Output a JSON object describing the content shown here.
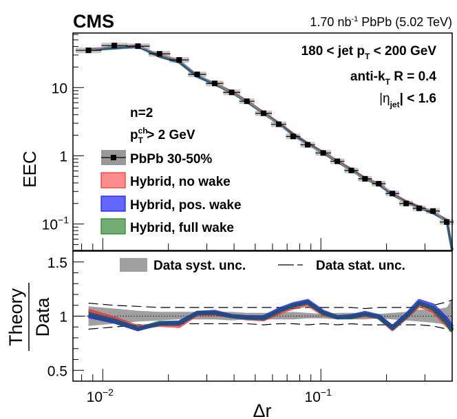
{
  "header": {
    "experiment": "CMS",
    "luminosity_prefix": "1.70 nb",
    "luminosity_sup": "-1",
    "luminosity_suffix": " PbPb (5.02 TeV)"
  },
  "annotations": {
    "line1_a": "180 < jet p",
    "line1_sub": "T",
    "line1_b": " < 200 GeV",
    "line2_a": "anti-k",
    "line2_sub": "T",
    "line2_b": " R = 0.4",
    "line3_a": "|η",
    "line3_sub": "jet",
    "line3_b": "| < 1.6",
    "n_label": "n=2",
    "pt_a": "p",
    "pt_sup": "ch",
    "pt_sub": "T",
    "pt_b": " > 2 GeV"
  },
  "chart_data": [
    {
      "type": "line",
      "panel": "main",
      "ylabel": "EEC",
      "xlabel": "",
      "xscale": "log",
      "yscale": "log",
      "xlim": [
        0.0073,
        0.4
      ],
      "ylim": [
        0.041,
        63
      ],
      "y_ticks": [
        {
          "v": 0.1,
          "label": "10",
          "sup": "−1"
        },
        {
          "v": 1,
          "label": "1",
          "sup": ""
        },
        {
          "v": 10,
          "label": "10",
          "sup": ""
        }
      ],
      "legend": [
        {
          "name": "PbPb 30-50%",
          "kind": "data",
          "color": "#000000",
          "band": "#999999"
        },
        {
          "name": "Hybrid, no wake",
          "kind": "band",
          "fill": "#ff8c8c",
          "edge": "#e8312f"
        },
        {
          "name": "Hybrid, pos. wake",
          "kind": "band",
          "fill": "#6464ff",
          "edge": "#1d1dde"
        },
        {
          "name": "Hybrid, full wake",
          "kind": "band",
          "fill": "#74ad74",
          "edge": "#2a7d2a"
        }
      ],
      "legend_position": "center-left",
      "x": [
        0.0086,
        0.0113,
        0.0145,
        0.0182,
        0.0224,
        0.0271,
        0.0326,
        0.039,
        0.0458,
        0.0546,
        0.0641,
        0.0746,
        0.087,
        0.1025,
        0.119,
        0.138,
        0.1594,
        0.1842,
        0.2129,
        0.2461,
        0.2825,
        0.3266,
        0.3776
      ],
      "series": [
        {
          "name": "PbPb 30-50%",
          "values": [
            35.1,
            41.3,
            40.4,
            31.2,
            25.4,
            15.6,
            11.5,
            8.5,
            6.3,
            4.2,
            2.9,
            1.92,
            1.45,
            1.1,
            0.83,
            0.61,
            0.46,
            0.39,
            0.28,
            0.2,
            0.17,
            0.155,
            0.107
          ]
        },
        {
          "name": "Hybrid (all wake variants, overlapping)",
          "values": [
            35.5,
            37.5,
            40.0,
            28.5,
            23.5,
            14.5,
            11.2,
            8.5,
            6.2,
            4.2,
            2.95,
            2.05,
            1.5,
            1.1,
            0.82,
            0.62,
            0.46,
            0.38,
            0.27,
            0.21,
            0.175,
            0.145,
            0.112
          ]
        }
      ],
      "theory_end": {
        "x": 0.4,
        "y": 0.041
      }
    },
    {
      "type": "line",
      "panel": "ratio",
      "ylabel_num": "Theory",
      "ylabel_den": "Data",
      "xlabel": "Δr",
      "xscale": "log",
      "xlim": [
        0.0073,
        0.4
      ],
      "ylim": [
        0.4,
        1.6
      ],
      "y_ticks": [
        0.5,
        1,
        1.5
      ],
      "y_tick_labels": [
        "0.5",
        "1",
        "1.5"
      ],
      "x_ticks": [
        0.01,
        0.1
      ],
      "x_tick_labels": [
        {
          "base": "10",
          "sup": "−2"
        },
        {
          "base": "10",
          "sup": "−1"
        }
      ],
      "legend": [
        {
          "name": "Data syst. unc.",
          "kind": "band",
          "fill": "#a0a0a0"
        },
        {
          "name": "Data stat. unc.",
          "kind": "dashed",
          "color": "#000000"
        }
      ],
      "x": [
        0.0086,
        0.0113,
        0.0145,
        0.0182,
        0.0224,
        0.0271,
        0.0326,
        0.039,
        0.0458,
        0.0546,
        0.0641,
        0.0746,
        0.087,
        0.1025,
        0.119,
        0.138,
        0.1594,
        0.1842,
        0.2129,
        0.2461,
        0.2825,
        0.3266,
        0.3776,
        0.4
      ],
      "series": [
        {
          "name": "Hybrid, no wake",
          "values": [
            1.05,
            0.98,
            0.9,
            0.92,
            0.91,
            1.02,
            1.02,
            1.0,
            0.98,
            0.97,
            1.03,
            1.08,
            1.11,
            1.02,
            0.99,
            0.99,
            1.01,
            0.99,
            0.88,
            0.99,
            1.1,
            1.05,
            0.92,
            0.87
          ]
        },
        {
          "name": "Hybrid, pos. wake",
          "values": [
            1.0,
            0.95,
            0.88,
            0.93,
            0.94,
            1.03,
            1.04,
            1.0,
            0.99,
            0.99,
            1.06,
            1.11,
            1.14,
            1.04,
            0.99,
            1.0,
            1.03,
            1.0,
            0.9,
            1.01,
            1.14,
            1.1,
            0.97,
            0.9
          ]
        },
        {
          "name": "Hybrid, full wake",
          "values": [
            1.01,
            0.95,
            0.88,
            0.94,
            0.94,
            1.03,
            1.03,
            1.0,
            0.99,
            0.98,
            1.05,
            1.1,
            1.13,
            1.03,
            0.99,
            0.99,
            1.02,
            0.99,
            0.89,
            1.0,
            1.12,
            1.07,
            0.94,
            0.86
          ]
        }
      ],
      "syst_band": {
        "lo": [
          0.91,
          0.93,
          0.95,
          0.96,
          0.97,
          0.97,
          0.97,
          0.96,
          0.97,
          0.97,
          0.97,
          0.97,
          0.98,
          0.98,
          0.97,
          0.97,
          0.97,
          0.98,
          0.97,
          0.96,
          0.95,
          0.94,
          0.92,
          0.9
        ],
        "hi": [
          1.09,
          1.07,
          1.05,
          1.04,
          1.04,
          1.04,
          1.04,
          1.04,
          1.03,
          1.03,
          1.03,
          1.04,
          1.03,
          1.02,
          1.03,
          1.03,
          1.03,
          1.02,
          1.03,
          1.04,
          1.06,
          1.06,
          1.08,
          1.16
        ]
      },
      "stat_band": {
        "lo": [
          0.88,
          0.9,
          0.92,
          0.92,
          0.93,
          0.93,
          0.93,
          0.93,
          0.93,
          0.92,
          0.93,
          0.93,
          0.92,
          0.93,
          0.92,
          0.93,
          0.92,
          0.92,
          0.92,
          0.92,
          0.92,
          0.91,
          0.88,
          0.86
        ],
        "hi": [
          1.12,
          1.1,
          1.09,
          1.08,
          1.08,
          1.08,
          1.08,
          1.08,
          1.08,
          1.08,
          1.08,
          1.07,
          1.08,
          1.08,
          1.08,
          1.08,
          1.07,
          1.08,
          1.08,
          1.08,
          1.08,
          1.1,
          1.13,
          1.15
        ]
      },
      "reference_line": 1.0
    }
  ]
}
